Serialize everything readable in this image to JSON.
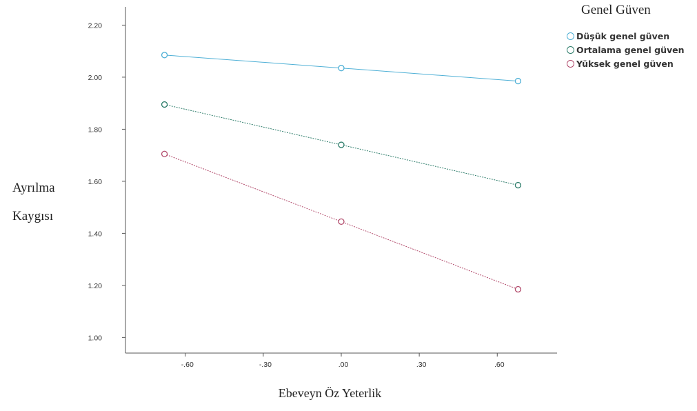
{
  "chart_data": {
    "type": "line",
    "xlabel": "Ebeveyn Öz Yeterlik",
    "ylabel_line1": "Ayrılma",
    "ylabel_line2": "Kaygısı",
    "x": [
      -0.68,
      0.0,
      0.68
    ],
    "xticks": [
      -0.6,
      -0.3,
      0.0,
      0.3,
      0.6
    ],
    "xtick_labels": [
      "-.60",
      "-.30",
      ".00",
      ".30",
      ".60"
    ],
    "yticks": [
      1.0,
      1.2,
      1.4,
      1.6,
      1.8,
      2.0,
      2.2
    ],
    "ytick_labels": [
      "1.00",
      "1.20",
      "1.40",
      "1.60",
      "1.80",
      "2.00",
      "2.20"
    ],
    "xlim": [
      -0.83,
      0.83
    ],
    "ylim": [
      0.94,
      2.27
    ],
    "legend_title": "Genel Güven",
    "legend_position": "top-right",
    "grid": false,
    "series": [
      {
        "name": "Düşük genel güven",
        "values": [
          2.085,
          2.035,
          1.985
        ],
        "color": "#4fb0d6"
      },
      {
        "name": "Ortalama genel güven",
        "values": [
          1.895,
          1.74,
          1.585
        ],
        "color": "#2e7d6b"
      },
      {
        "name": "Yüksek genel güven",
        "values": [
          1.705,
          1.445,
          1.185
        ],
        "color": "#b24a6b"
      }
    ]
  }
}
